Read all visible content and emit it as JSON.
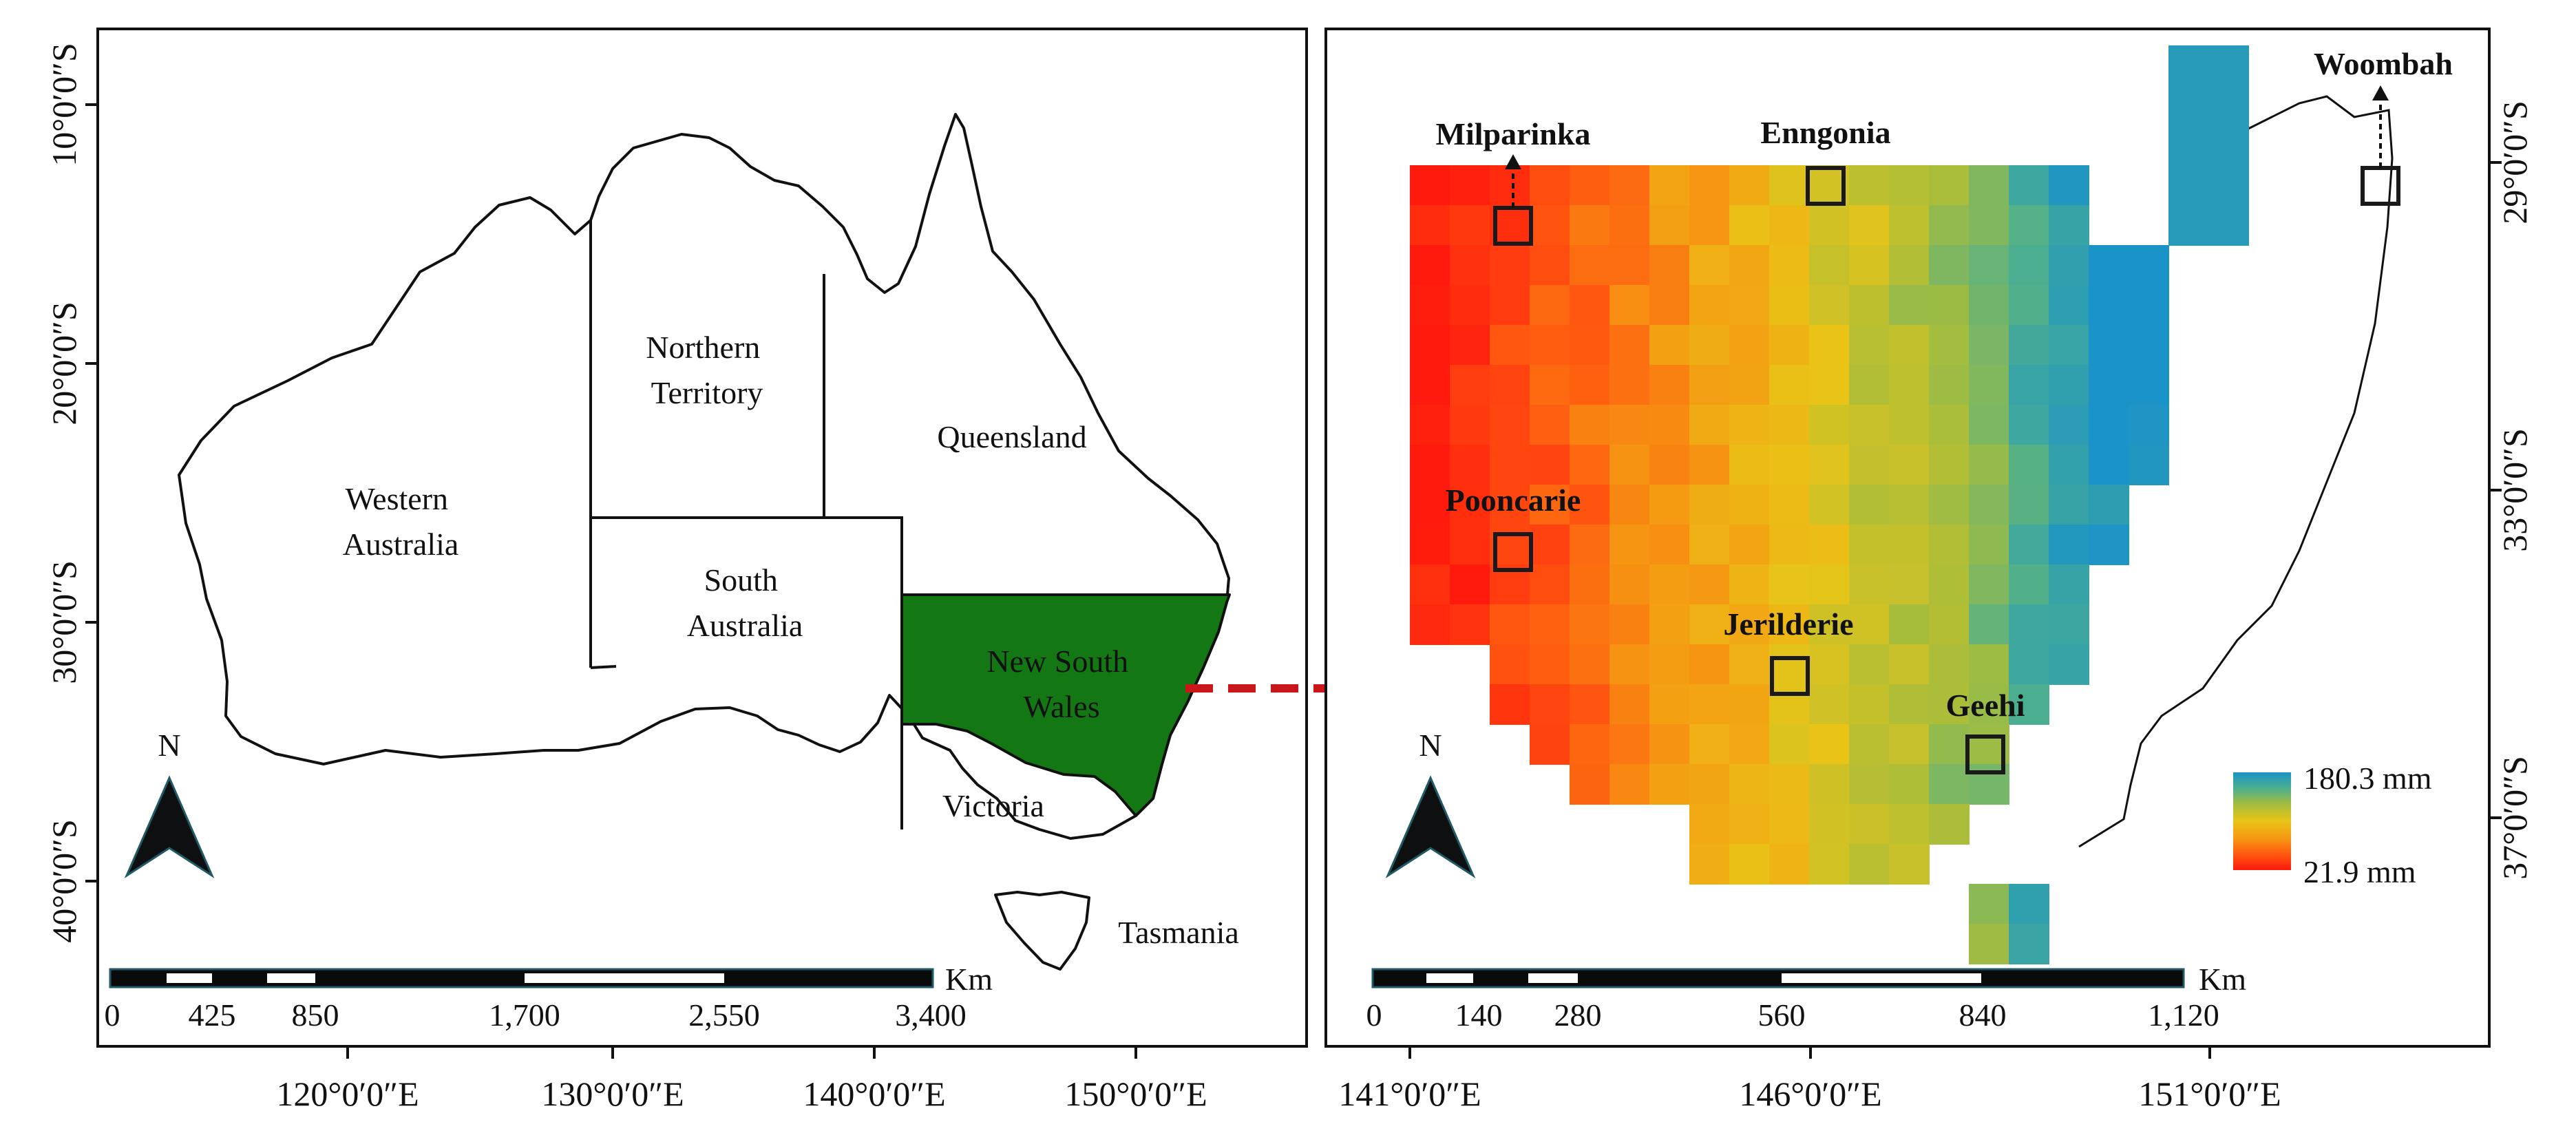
{
  "left_map": {
    "states": [
      {
        "id": "wa",
        "lines": [
          "Western",
          "Australia"
        ]
      },
      {
        "id": "nt",
        "lines": [
          "Northern",
          "Territory"
        ]
      },
      {
        "id": "qld",
        "lines": [
          "Queensland"
        ]
      },
      {
        "id": "sa",
        "lines": [
          "South",
          "Australia"
        ]
      },
      {
        "id": "nsw",
        "lines": [
          "New South",
          "Wales"
        ]
      },
      {
        "id": "vic",
        "lines": [
          "Victoria"
        ]
      },
      {
        "id": "tas",
        "lines": [
          "Tasmania"
        ]
      }
    ],
    "north_label": "N",
    "x_ticks": [
      "120°0′0″E",
      "130°0′0″E",
      "140°0′0″E",
      "150°0′0″E"
    ],
    "y_ticks": [
      "10°0′0″S",
      "20°0′0″S",
      "30°0′0″S",
      "40°0′0″S"
    ],
    "scale_bar": {
      "unit": "Km",
      "labels": [
        "0",
        "425",
        "850",
        "1,700",
        "2,550",
        "3,400"
      ]
    },
    "highlight_color": "#137813"
  },
  "right_map": {
    "stations": [
      {
        "id": "milparinka",
        "name": "Milparinka"
      },
      {
        "id": "enngonia",
        "name": "Enngonia"
      },
      {
        "id": "woombah",
        "name": "Woombah"
      },
      {
        "id": "pooncarie",
        "name": "Pooncarie"
      },
      {
        "id": "jerilderie",
        "name": "Jerilderie"
      },
      {
        "id": "geehi",
        "name": "Geehi"
      }
    ],
    "north_label": "N",
    "x_ticks": [
      "141°0′0″E",
      "146°0′0″E",
      "151°0′0″E"
    ],
    "y_ticks": [
      "29°0′0″S",
      "33°0′0″S",
      "37°0′0″S"
    ],
    "scale_bar": {
      "unit": "Km",
      "labels": [
        "0",
        "140",
        "280",
        "560",
        "840",
        "1,120"
      ]
    },
    "legend": {
      "max": "180.3 mm",
      "min": "21.9 mm"
    },
    "colormap": [
      "#ff1a0d",
      "#ff5a10",
      "#f59a12",
      "#e9c417",
      "#a6bd3c",
      "#4fb08c",
      "#1a93c8"
    ]
  },
  "arrow_color": "#c8161a"
}
